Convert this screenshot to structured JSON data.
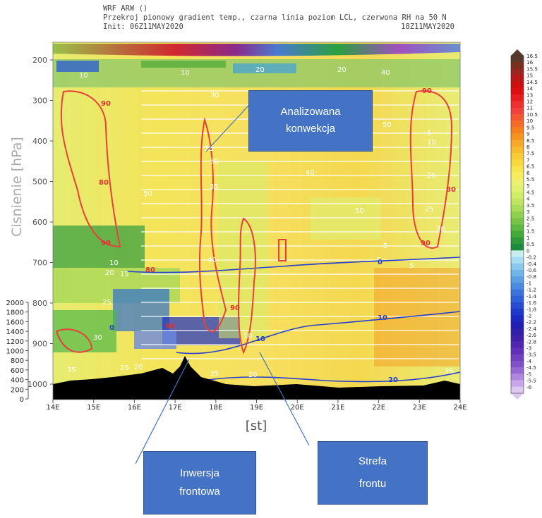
{
  "header": {
    "line1": "WRF ARW ()",
    "line2": "Przekroj pionowy gradient temp., czarna linia poziom LCL, czerwona RH na 50 N",
    "line3_left": "Init: 06Z11MAY2020",
    "line3_right": "18Z11MAY2020"
  },
  "chart_data": {
    "type": "heatmap",
    "title": "Przekroj pionowy gradient temp., czarna linia poziom LCL, czerwona RH na 50 N",
    "xlabel": "[st]",
    "ylabel": "Cisnienie [hPa]",
    "x_ticks": [
      "14E",
      "15E",
      "16E",
      "17E",
      "18E",
      "19E",
      "20E",
      "21E",
      "22E",
      "23E",
      "24E"
    ],
    "x_range": [
      14,
      24
    ],
    "y_pressure_ticks": [
      200,
      300,
      400,
      500,
      600,
      700,
      800,
      900,
      1000
    ],
    "y_pressure_range": [
      200,
      1000
    ],
    "y_height_ticks": [
      2000,
      1800,
      1600,
      1400,
      1200,
      1000,
      800,
      600,
      400,
      200,
      0
    ],
    "colorbar_ticks": [
      "16.5",
      "16",
      "15.5",
      "15",
      "14.5",
      "14",
      "13",
      "12",
      "11",
      "10.5",
      "10",
      "9.5",
      "9",
      "8.5",
      "8",
      "7.5",
      "7",
      "6.5",
      "6",
      "5.5",
      "5",
      "4.5",
      "4",
      "3.5",
      "3",
      "2.5",
      "2",
      "1.5",
      "1",
      "0.5",
      "0",
      "-0.2",
      "-0.4",
      "-0.6",
      "-0.8",
      "-1",
      "-1.2",
      "-1.4",
      "-1.6",
      "-1.8",
      "-2",
      "-2.2",
      "-2.4",
      "-2.6",
      "-2.8",
      "-3",
      "-3.5",
      "-4",
      "-4.5",
      "-5",
      "-5.5",
      "-6"
    ],
    "colorbar_colors": [
      "#5a3a2a",
      "#7a3020",
      "#9a2620",
      "#b81818",
      "#cc1010",
      "#dd0f0f",
      "#e81e1e",
      "#ef3030",
      "#f24040",
      "#f45830",
      "#f56c28",
      "#f68020",
      "#f79420",
      "#f7a828",
      "#f8bc30",
      "#f8cc38",
      "#f8d840",
      "#f8e450",
      "#f6ec60",
      "#eef070",
      "#e2f070",
      "#d2ec68",
      "#c0e460",
      "#aadc58",
      "#90d050",
      "#78c448",
      "#5cb840",
      "#44aa3c",
      "#2e9a3a",
      "#1e8a3c",
      "#c8ecf0",
      "#a8dcf0",
      "#88c8ec",
      "#70b4e8",
      "#5aa0e4",
      "#4a8ae0",
      "#3c74dc",
      "#3060d8",
      "#284cd0",
      "#2038c8",
      "#1c28c0",
      "#2020b0",
      "#3020a8",
      "#4020a8",
      "#5028b0",
      "#6030b8",
      "#7040c0",
      "#8050c8",
      "#9868d4",
      "#b088e0",
      "#c8a8ea",
      "#dcc8f0"
    ],
    "lcl_line": "czarna linia poziom LCL",
    "rh_contours": "czerwona RH",
    "contour_labels": [
      "0",
      "5",
      "10",
      "15",
      "20",
      "25",
      "30",
      "35",
      "40",
      "50",
      "80",
      "90"
    ],
    "annotations": [
      "Analizowana konwekcja",
      "Inwersja frontowa",
      "Strefa frontu"
    ]
  },
  "callouts": {
    "convection": {
      "line1": "Analizowana",
      "line2": "konwekcja"
    },
    "inversion": {
      "line1": "Inwersja",
      "line2": "frontowa"
    },
    "front": {
      "line1": "Strefa",
      "line2": "frontu"
    }
  }
}
